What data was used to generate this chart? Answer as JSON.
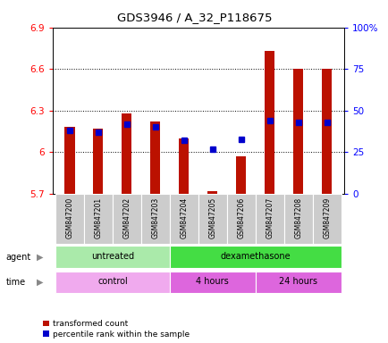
{
  "title": "GDS3946 / A_32_P118675",
  "samples": [
    "GSM847200",
    "GSM847201",
    "GSM847202",
    "GSM847203",
    "GSM847204",
    "GSM847205",
    "GSM847206",
    "GSM847207",
    "GSM847208",
    "GSM847209"
  ],
  "transformed_count": [
    6.18,
    6.17,
    6.28,
    6.22,
    6.1,
    5.72,
    5.97,
    6.73,
    6.6,
    6.6
  ],
  "percentile_rank": [
    38,
    37,
    42,
    40,
    32,
    27,
    33,
    44,
    43,
    43
  ],
  "ylim_left": [
    5.7,
    6.9
  ],
  "ylim_right": [
    0,
    100
  ],
  "yticks_left": [
    5.7,
    6.0,
    6.3,
    6.6,
    6.9
  ],
  "yticks_right": [
    0,
    25,
    50,
    75,
    100
  ],
  "ytick_labels_left": [
    "5.7",
    "6",
    "6.3",
    "6.6",
    "6.9"
  ],
  "ytick_labels_right": [
    "0",
    "25",
    "50",
    "75",
    "100%"
  ],
  "bar_color": "#bb1100",
  "dot_color": "#0000cc",
  "bar_width": 0.35,
  "agent_groups": [
    {
      "label": "untreated",
      "start": 0,
      "end": 4,
      "color": "#aaeaaa"
    },
    {
      "label": "dexamethasone",
      "start": 4,
      "end": 10,
      "color": "#44dd44"
    }
  ],
  "time_groups": [
    {
      "label": "control",
      "start": 0,
      "end": 4,
      "color": "#f0aaee"
    },
    {
      "label": "4 hours",
      "start": 4,
      "end": 7,
      "color": "#dd66dd"
    },
    {
      "label": "24 hours",
      "start": 7,
      "end": 10,
      "color": "#dd66dd"
    }
  ],
  "legend_items": [
    {
      "label": "transformed count",
      "color": "#bb1100"
    },
    {
      "label": "percentile rank within the sample",
      "color": "#0000cc"
    }
  ],
  "sample_bg_color": "#cccccc",
  "plot_bg_color": "#ffffff"
}
